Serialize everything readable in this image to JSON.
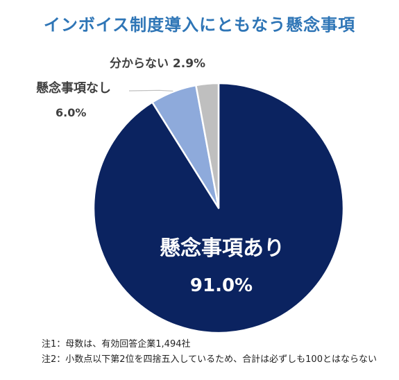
{
  "chart_data": {
    "type": "pie",
    "title": "インボイス制度導入にともなう懸念事項",
    "slices": [
      {
        "label": "懸念事項あり",
        "value": 91.0,
        "value_label": "91.0%",
        "color": "#0b2360"
      },
      {
        "label": "懸念事項なし",
        "value": 6.0,
        "value_label": "6.0%",
        "color": "#8eaadb"
      },
      {
        "label": "分からない",
        "value": 2.9,
        "value_label": "2.9%",
        "color": "#bfbfbf"
      }
    ],
    "start": "12 o'clock",
    "direction": "clockwise",
    "legend": "none",
    "leader_line_color": "#bfbfbf",
    "label_colors": {
      "inside": "#ffffff",
      "outside": "#404040"
    }
  },
  "notes": [
    "注1：母数は、有効回答企業1,494社",
    "注2：小数点以下第2位を四捨五入しているため、合計は必ずしも100とはならない"
  ]
}
